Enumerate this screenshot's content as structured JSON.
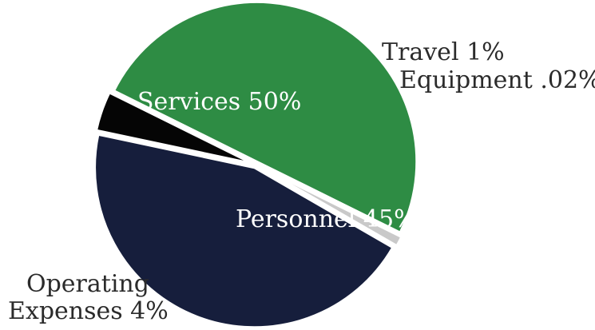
{
  "chart_data": {
    "type": "pie",
    "title": "",
    "slices": [
      {
        "label": "Personnel 45%",
        "value": 45,
        "color": "#161e3c"
      },
      {
        "label": "Operating Expenses 4%",
        "value": 4,
        "color": "#050505"
      },
      {
        "label": "Services 50%",
        "value": 50,
        "color": "#2e8c44"
      },
      {
        "label": "Travel 1%",
        "value": 1,
        "color": "#c9c9c9"
      },
      {
        "label": "Equipment .02%",
        "value": 0.02,
        "color": "#e0e0e0"
      }
    ],
    "labels": {
      "services": "Services 50%",
      "personnel": "Personnel 45%",
      "operating_line1": "Operating",
      "operating_line2": "Expenses 4%",
      "travel": "Travel 1%",
      "equipment": "Equipment .02%"
    },
    "legend": "none",
    "grid": false
  }
}
